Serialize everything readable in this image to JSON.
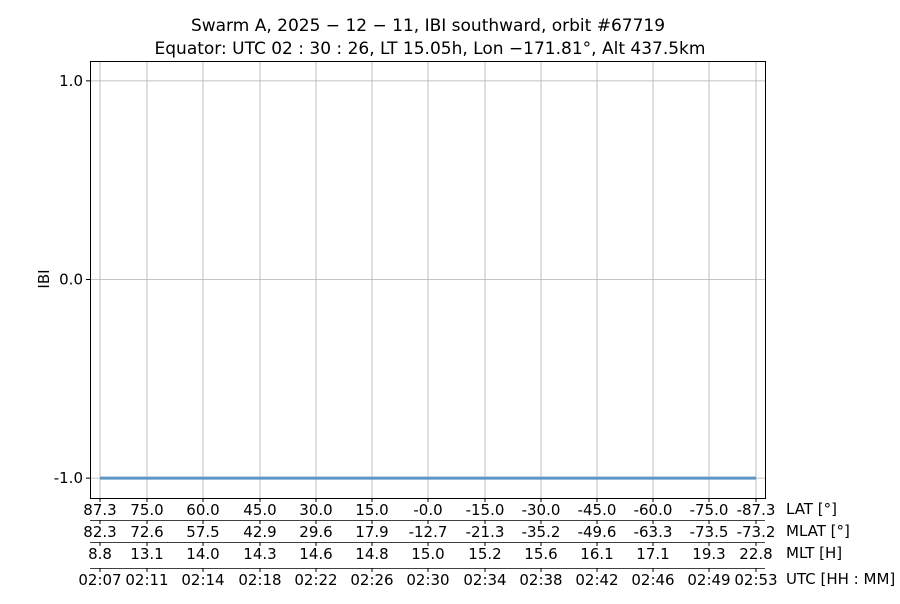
{
  "chart_data": {
    "type": "line",
    "title_line1": "Swarm A,  2025 − 12 − 11,  IBI southward,  orbit #67719",
    "title_line2": "Equator:  UTC 02 : 30 : 26,  LT 15.05h,  Lon  −171.81°,  Alt 437.5km",
    "ylabel": "IBI",
    "ylim": [
      -1.1,
      1.1
    ],
    "yticks": [
      1.0,
      0.0,
      -1.0
    ],
    "ytick_labels": [
      "1.0",
      "0.0",
      "-1.0"
    ],
    "grid": true,
    "line_color": "#5b97c7",
    "series": [
      {
        "x": [
          "02:07",
          "02:53"
        ],
        "y": [
          -1.0,
          -1.0
        ]
      }
    ],
    "x_axes": [
      {
        "label": "LAT [°]",
        "ticks": [
          "87.3",
          "75.0",
          "60.0",
          "45.0",
          "30.0",
          "15.0",
          "-0.0",
          "-15.0",
          "-30.0",
          "-45.0",
          "-60.0",
          "-75.0",
          "-87.3"
        ]
      },
      {
        "label": "MLAT [°]",
        "ticks": [
          "82.3",
          "72.6",
          "57.5",
          "42.9",
          "29.6",
          "17.9",
          "-12.7",
          "-21.3",
          "-35.2",
          "-49.6",
          "-63.3",
          "-73.5",
          "-73.2"
        ]
      },
      {
        "label": "MLT [H]",
        "ticks": [
          "8.8",
          "13.1",
          "14.0",
          "14.3",
          "14.6",
          "14.8",
          "15.0",
          "15.2",
          "15.6",
          "16.1",
          "17.1",
          "19.3",
          "22.8"
        ]
      },
      {
        "label": "UTC [HH : MM]",
        "ticks": [
          "02:07",
          "02:11",
          "02:14",
          "02:18",
          "02:22",
          "02:26",
          "02:30",
          "02:34",
          "02:38",
          "02:42",
          "02:46",
          "02:49",
          "02:53"
        ]
      }
    ]
  }
}
